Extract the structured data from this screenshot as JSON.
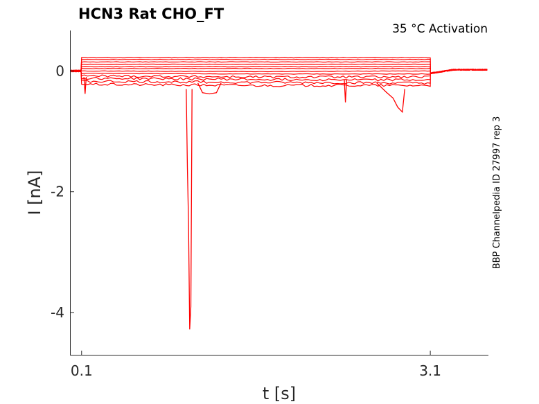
{
  "chart_data": {
    "type": "line",
    "title": "HCN3  Rat  CHO_FT",
    "annotation": "35 °C  Activation",
    "side_label": "BBP Channelpedia ID 27997 rep 3",
    "xlabel": "t [s]",
    "ylabel": "I [nA]",
    "xlim": [
      -0.0,
      3.6
    ],
    "ylim": [
      -4.7,
      0.67
    ],
    "x_ticks": [
      0.1,
      3.1
    ],
    "x_tick_labels": [
      "0.1",
      "3.1"
    ],
    "y_ticks": [
      0,
      -2,
      -4
    ],
    "y_tick_labels": [
      "0",
      "-2",
      "-4"
    ],
    "grid": false,
    "series_color": "#ff0000",
    "series": [
      {
        "values": [
          0.22,
          0.22,
          0.22
        ]
      },
      {
        "values": [
          0.19,
          0.19,
          0.19
        ]
      },
      {
        "values": [
          0.15,
          0.15,
          0.15
        ]
      },
      {
        "values": [
          0.11,
          0.11,
          0.11
        ]
      },
      {
        "values": [
          0.07,
          0.07,
          0.07
        ]
      },
      {
        "values": [
          0.04,
          0.04,
          0.04
        ]
      },
      {
        "values": [
          0.0,
          -0.01,
          0.0
        ]
      },
      {
        "values": [
          -0.04,
          -0.05,
          -0.05
        ]
      },
      {
        "values": [
          -0.08,
          -0.1,
          -0.1
        ]
      },
      {
        "values": [
          -0.12,
          -0.14,
          -0.15
        ]
      },
      {
        "values": [
          -0.17,
          -0.19,
          -0.2
        ]
      },
      {
        "values": [
          -0.22,
          -0.24,
          -0.24
        ]
      }
    ],
    "baseline_before": 0.0,
    "baseline_after": 0.02,
    "step_start": 0.1,
    "step_end": 3.1,
    "events": [
      {
        "x": [
          1.0,
          1.01,
          1.02,
          1.03,
          1.04,
          1.05
        ],
        "y": [
          -0.3,
          -1.6,
          -2.5,
          -4.28,
          -3.9,
          -0.3
        ]
      },
      {
        "x": [
          1.1,
          1.14,
          1.2,
          1.26,
          1.3
        ],
        "y": [
          -0.2,
          -0.36,
          -0.38,
          -0.36,
          -0.2
        ]
      },
      {
        "x": [
          2.36,
          2.37,
          2.38
        ],
        "y": [
          -0.15,
          -0.52,
          -0.15
        ]
      },
      {
        "x": [
          2.64,
          2.72,
          2.78,
          2.82,
          2.86,
          2.88
        ],
        "y": [
          -0.2,
          -0.35,
          -0.45,
          -0.6,
          -0.68,
          -0.3
        ]
      },
      {
        "x": [
          0.12,
          0.13,
          0.14
        ],
        "y": [
          -0.1,
          -0.38,
          -0.1
        ]
      }
    ]
  }
}
